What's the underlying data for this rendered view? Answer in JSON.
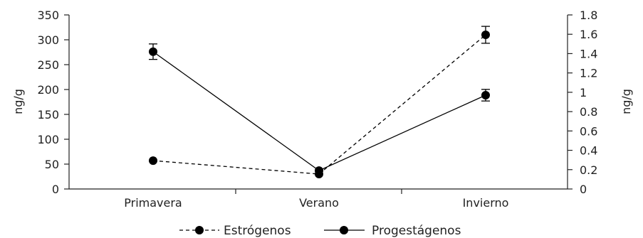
{
  "chart_data": {
    "type": "line",
    "categories": [
      "Primavera",
      "Verano",
      "Invierno"
    ],
    "y_left": {
      "label": "ng/g",
      "range": [
        0,
        350
      ],
      "ticks": [
        0,
        50,
        100,
        150,
        200,
        250,
        300,
        350
      ]
    },
    "y_right": {
      "label": "ng/g",
      "range": [
        0,
        1.8
      ],
      "ticks": [
        "0",
        "0.2",
        "0.4",
        "0.6",
        "0.8",
        "1",
        "1.2",
        "1.4",
        "1.6",
        "1.8"
      ]
    },
    "series": [
      {
        "name": "Estrógenos",
        "axis": "left",
        "line_style": "dashed",
        "color": "#000000",
        "values": [
          57,
          30,
          310
        ],
        "error": [
          0,
          0,
          17
        ]
      },
      {
        "name": "Progestágenos",
        "axis": "right",
        "line_style": "solid",
        "color": "#000000",
        "values": [
          1.42,
          0.19,
          0.97
        ],
        "error": [
          0.08,
          0,
          0.06
        ]
      }
    ],
    "legend_position": "bottom-center",
    "grid": false
  }
}
